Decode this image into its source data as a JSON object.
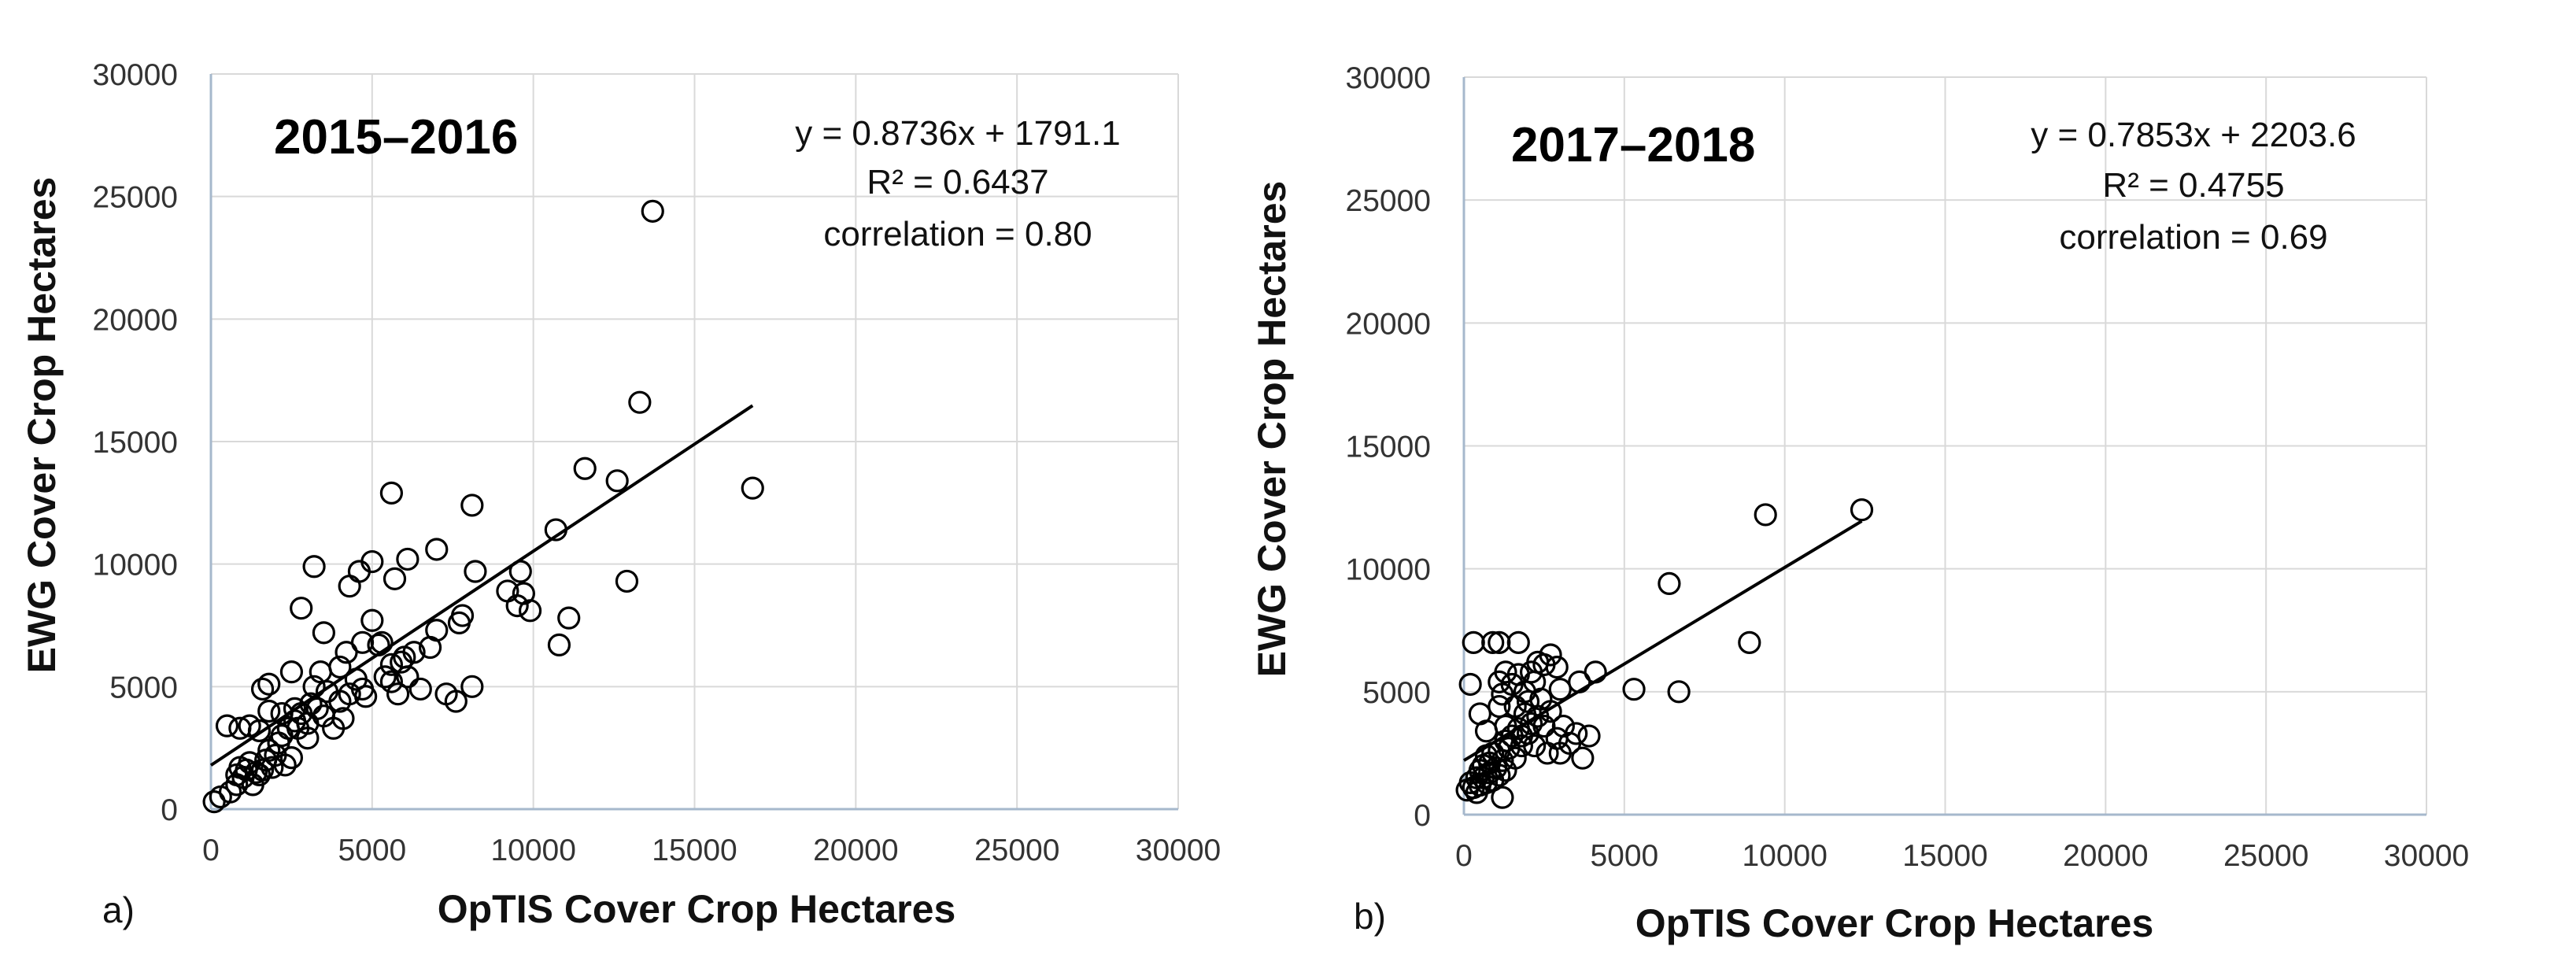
{
  "chart_data": [
    {
      "type": "scatter",
      "panel_label": "a)",
      "title": "2015–2016",
      "xlabel": "OpTIS Cover Crop Hectares",
      "ylabel": "EWG Cover Crop Hectares",
      "xlim": [
        0,
        30000
      ],
      "ylim": [
        0,
        30000
      ],
      "xticks": [
        "0",
        "5000",
        "10000",
        "15000",
        "20000",
        "25000",
        "30000"
      ],
      "yticks": [
        "0",
        "5000",
        "10000",
        "15000",
        "20000",
        "25000",
        "30000"
      ],
      "grid": true,
      "annotations": [
        "y = 0.8736x + 1791.1",
        "R² = 0.6437",
        "correlation = 0.80"
      ],
      "trendline": {
        "slope": 0.8736,
        "intercept": 1791.1,
        "x_range": [
          0,
          16800
        ]
      },
      "points": [
        [
          100,
          300
        ],
        [
          300,
          500
        ],
        [
          600,
          700
        ],
        [
          800,
          1000
        ],
        [
          800,
          1400
        ],
        [
          900,
          1700
        ],
        [
          1000,
          1300
        ],
        [
          1100,
          1600
        ],
        [
          1200,
          1900
        ],
        [
          1300,
          1000
        ],
        [
          1400,
          1500
        ],
        [
          1500,
          1400
        ],
        [
          1600,
          1600
        ],
        [
          1700,
          2000
        ],
        [
          1800,
          2400
        ],
        [
          1900,
          1700
        ],
        [
          2000,
          2200
        ],
        [
          2100,
          2700
        ],
        [
          2300,
          1800
        ],
        [
          2500,
          2100
        ],
        [
          2200,
          3000
        ],
        [
          2400,
          3300
        ],
        [
          2600,
          3600
        ],
        [
          2800,
          3900
        ],
        [
          3000,
          3500
        ],
        [
          3100,
          4300
        ],
        [
          3300,
          4100
        ],
        [
          3500,
          3800
        ],
        [
          3200,
          5000
        ],
        [
          3400,
          5600
        ],
        [
          3600,
          4800
        ],
        [
          3800,
          3300
        ],
        [
          4100,
          3700
        ],
        [
          4300,
          4700
        ],
        [
          4000,
          5800
        ],
        [
          4200,
          6400
        ],
        [
          4500,
          5300
        ],
        [
          4700,
          6800
        ],
        [
          4800,
          4600
        ],
        [
          5000,
          7700
        ],
        [
          5200,
          6700
        ],
        [
          5400,
          5400
        ],
        [
          5600,
          5900
        ],
        [
          5800,
          4700
        ],
        [
          6000,
          6200
        ],
        [
          6100,
          5400
        ],
        [
          6300,
          6400
        ],
        [
          6500,
          4900
        ],
        [
          6800,
          6600
        ],
        [
          7000,
          7300
        ],
        [
          7300,
          4700
        ],
        [
          7600,
          4400
        ],
        [
          7700,
          7600
        ],
        [
          7800,
          7900
        ],
        [
          8100,
          5000
        ],
        [
          8200,
          9700
        ],
        [
          9200,
          8900
        ],
        [
          9500,
          8300
        ],
        [
          9600,
          9700
        ],
        [
          9700,
          8800
        ],
        [
          9900,
          8100
        ],
        [
          10700,
          11400
        ],
        [
          10800,
          6700
        ],
        [
          11100,
          7800
        ],
        [
          11600,
          13900
        ],
        [
          12600,
          13400
        ],
        [
          12900,
          9300
        ],
        [
          13300,
          16600
        ],
        [
          13700,
          24400
        ],
        [
          16800,
          13100
        ],
        [
          5600,
          12900
        ],
        [
          8100,
          12400
        ],
        [
          7000,
          10600
        ],
        [
          6100,
          10200
        ],
        [
          5700,
          9400
        ],
        [
          5000,
          10100
        ],
        [
          4600,
          9700
        ],
        [
          4300,
          9100
        ],
        [
          3200,
          9900
        ],
        [
          2800,
          8200
        ],
        [
          3500,
          7200
        ],
        [
          1800,
          5100
        ],
        [
          1600,
          4900
        ],
        [
          1800,
          4000
        ],
        [
          2200,
          3900
        ],
        [
          2600,
          4100
        ],
        [
          500,
          3400
        ],
        [
          900,
          3300
        ],
        [
          1200,
          3400
        ],
        [
          1500,
          3200
        ],
        [
          2500,
          5600
        ],
        [
          3000,
          2900
        ],
        [
          2700,
          3300
        ],
        [
          4000,
          4400
        ],
        [
          4700,
          4900
        ],
        [
          5300,
          6800
        ],
        [
          5600,
          5200
        ],
        [
          5900,
          6000
        ]
      ]
    },
    {
      "type": "scatter",
      "panel_label": "b)",
      "title": "2017–2018",
      "xlabel": "OpTIS Cover Crop Hectares",
      "ylabel": "EWG Cover Crop Hectares",
      "xlim": [
        0,
        30000
      ],
      "ylim": [
        0,
        30000
      ],
      "xticks": [
        "0",
        "5000",
        "10000",
        "15000",
        "20000",
        "25000",
        "30000"
      ],
      "yticks": [
        "0",
        "5000",
        "10000",
        "15000",
        "20000",
        "25000",
        "30000"
      ],
      "grid": true,
      "annotations": [
        "y = 0.7853x + 2203.6",
        "R² = 0.4755",
        "correlation = 0.69"
      ],
      "trendline": {
        "slope": 0.7853,
        "intercept": 2203.6,
        "x_range": [
          0,
          12400
        ]
      },
      "points": [
        [
          100,
          1000
        ],
        [
          200,
          1300
        ],
        [
          300,
          1100
        ],
        [
          400,
          1500
        ],
        [
          400,
          900
        ],
        [
          500,
          1800
        ],
        [
          500,
          1200
        ],
        [
          600,
          1500
        ],
        [
          600,
          2000
        ],
        [
          700,
          1300
        ],
        [
          700,
          2400
        ],
        [
          800,
          1700
        ],
        [
          800,
          2100
        ],
        [
          900,
          1400
        ],
        [
          900,
          2500
        ],
        [
          1000,
          1900
        ],
        [
          1100,
          1600
        ],
        [
          1100,
          2600
        ],
        [
          1200,
          2200
        ],
        [
          1300,
          3000
        ],
        [
          1300,
          1800
        ],
        [
          1400,
          2700
        ],
        [
          1500,
          3200
        ],
        [
          1600,
          2300
        ],
        [
          1700,
          3500
        ],
        [
          1800,
          2800
        ],
        [
          1900,
          4100
        ],
        [
          2000,
          3300
        ],
        [
          2100,
          3700
        ],
        [
          2200,
          2800
        ],
        [
          2300,
          4000
        ],
        [
          2400,
          4700
        ],
        [
          2500,
          3600
        ],
        [
          2600,
          2500
        ],
        [
          2700,
          4200
        ],
        [
          2900,
          3100
        ],
        [
          3000,
          2500
        ],
        [
          3100,
          3600
        ],
        [
          3300,
          2900
        ],
        [
          3500,
          3300
        ],
        [
          3700,
          2300
        ],
        [
          3900,
          3200
        ],
        [
          3600,
          5400
        ],
        [
          4100,
          5800
        ],
        [
          3000,
          5100
        ],
        [
          2900,
          6000
        ],
        [
          2700,
          6500
        ],
        [
          2300,
          6200
        ],
        [
          2100,
          5800
        ],
        [
          1900,
          5000
        ],
        [
          1700,
          5700
        ],
        [
          1500,
          5300
        ],
        [
          1300,
          5800
        ],
        [
          1200,
          4900
        ],
        [
          1100,
          5400
        ],
        [
          900,
          7000
        ],
        [
          1100,
          7000
        ],
        [
          1700,
          7000
        ],
        [
          300,
          7000
        ],
        [
          200,
          5300
        ],
        [
          500,
          4100
        ],
        [
          700,
          3400
        ],
        [
          1100,
          4400
        ],
        [
          1300,
          3600
        ],
        [
          1600,
          4400
        ],
        [
          1800,
          3200
        ],
        [
          2000,
          4600
        ],
        [
          2200,
          5400
        ],
        [
          2500,
          6100
        ],
        [
          1200,
          700
        ],
        [
          5300,
          5100
        ],
        [
          6400,
          9400
        ],
        [
          6700,
          5000
        ],
        [
          8900,
          7000
        ],
        [
          9400,
          12200
        ],
        [
          12400,
          12400
        ]
      ]
    }
  ]
}
